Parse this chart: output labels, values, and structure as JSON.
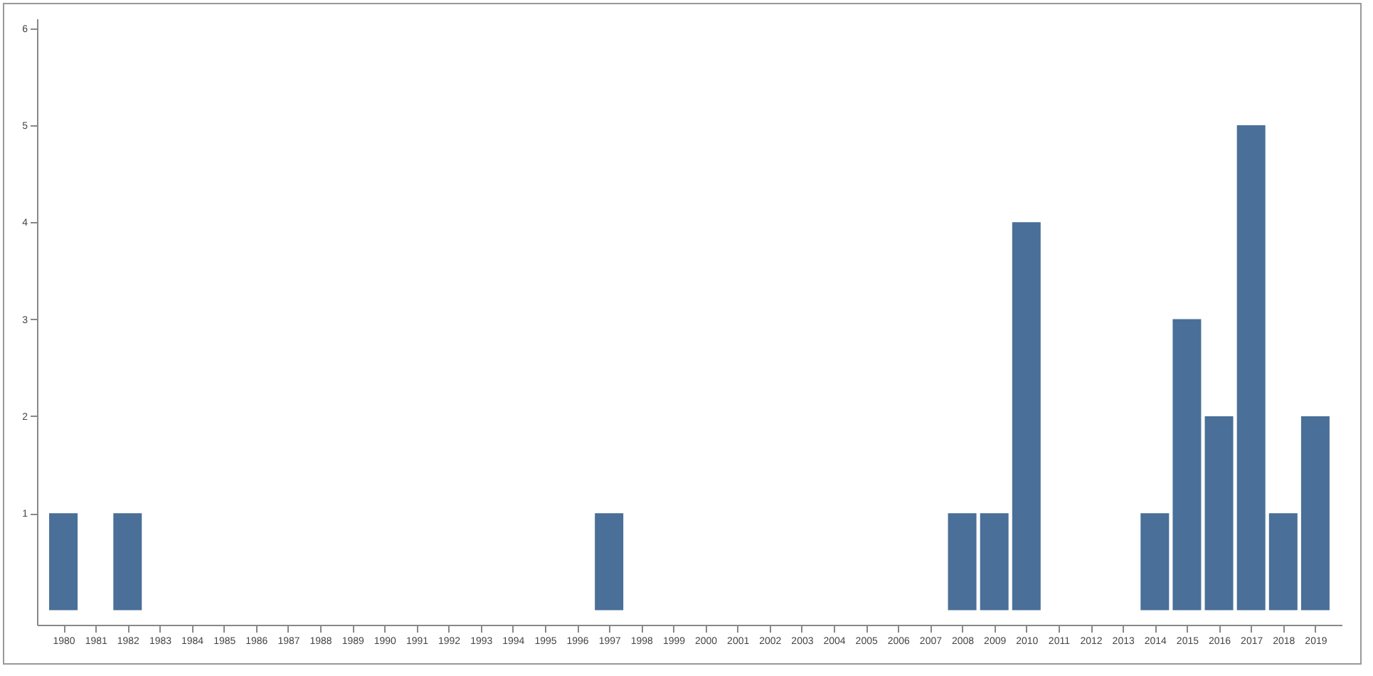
{
  "chart_data": {
    "type": "bar",
    "categories": [
      "1980",
      "1981",
      "1982",
      "1983",
      "1984",
      "1985",
      "1986",
      "1987",
      "1988",
      "1989",
      "1990",
      "1991",
      "1992",
      "1993",
      "1994",
      "1995",
      "1996",
      "1997",
      "1998",
      "1999",
      "2000",
      "2001",
      "2002",
      "2003",
      "2004",
      "2005",
      "2006",
      "2007",
      "2008",
      "2009",
      "2010",
      "2011",
      "2012",
      "2013",
      "2014",
      "2015",
      "2016",
      "2017",
      "2018",
      "2019"
    ],
    "values": [
      1,
      null,
      1,
      null,
      null,
      null,
      null,
      null,
      null,
      null,
      null,
      null,
      null,
      null,
      null,
      null,
      null,
      1,
      null,
      null,
      null,
      null,
      null,
      null,
      null,
      null,
      null,
      null,
      1,
      1,
      4,
      null,
      null,
      null,
      1,
      3,
      2,
      5,
      1,
      2
    ],
    "color": "#4a6f98",
    "ylim": [
      -0.15,
      6.1
    ],
    "yticks": [
      1,
      2,
      3,
      4,
      5,
      6
    ],
    "grid": false
  }
}
